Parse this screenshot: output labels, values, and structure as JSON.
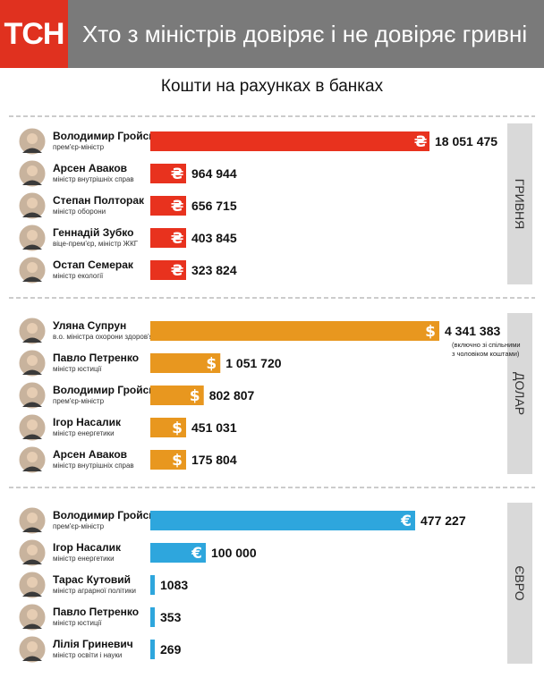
{
  "brand": {
    "logo_text": "ТСН"
  },
  "header": {
    "title": "Хто з міністрів довіряє і не довіряє гривні"
  },
  "chart_data": {
    "type": "bar",
    "title": "Кошти на рахунках в банках",
    "groups": [
      {
        "label": "ГРИВНЯ",
        "currency_symbol": "₴",
        "color": "#e8321e",
        "items": [
          {
            "name": "Володимир Гройсман",
            "role": "прем'єр-міністр",
            "value": 18051475,
            "value_label": "18 051 475"
          },
          {
            "name": "Арсен Аваков",
            "role": "міністр внутрішніх справ",
            "value": 964944,
            "value_label": "964 944"
          },
          {
            "name": "Степан Полторак",
            "role": "міністр оборони",
            "value": 656715,
            "value_label": "656 715"
          },
          {
            "name": "Геннадій Зубко",
            "role": "віце-прем'єр, міністр ЖКГ",
            "value": 403845,
            "value_label": "403 845"
          },
          {
            "name": "Остап Семерак",
            "role": "міністр екології",
            "value": 323824,
            "value_label": "323 824"
          }
        ]
      },
      {
        "label": "ДОЛАР",
        "currency_symbol": "$",
        "color": "#e8971f",
        "items": [
          {
            "name": "Уляна Супрун",
            "role": "в.о. міністра охорони здоров'я",
            "value": 4341383,
            "value_label": "4 341 383",
            "note": [
              "(включно зі спільними",
              "з чоловіком коштами)"
            ]
          },
          {
            "name": "Павло Петренко",
            "role": "міністр юстиції",
            "value": 1051720,
            "value_label": "1 051 720"
          },
          {
            "name": "Володимир Гройсман",
            "role": "прем'єр-міністр",
            "value": 802807,
            "value_label": "802 807"
          },
          {
            "name": "Ігор Насалик",
            "role": "міністр енергетики",
            "value": 451031,
            "value_label": "451 031"
          },
          {
            "name": "Арсен Аваков",
            "role": "міністр внутрішніх справ",
            "value": 175804,
            "value_label": "175 804"
          }
        ]
      },
      {
        "label": "ЄВРО",
        "currency_symbol": "€",
        "color": "#2ea6dd",
        "items": [
          {
            "name": "Володимир Гройсман",
            "role": "прем'єр-міністр",
            "value": 477227,
            "value_label": "477 227"
          },
          {
            "name": "Ігор Насалик",
            "role": "міністр енергетики",
            "value": 100000,
            "value_label": "100 000"
          },
          {
            "name": "Тарас Кутовий",
            "role": "міністр аграрної політики",
            "value": 1083,
            "value_label": "1083"
          },
          {
            "name": "Павло Петренко",
            "role": "міністр юстиції",
            "value": 353,
            "value_label": "353"
          },
          {
            "name": "Лілія Гриневич",
            "role": "міністр освіти і науки",
            "value": 269,
            "value_label": "269"
          }
        ]
      }
    ]
  }
}
